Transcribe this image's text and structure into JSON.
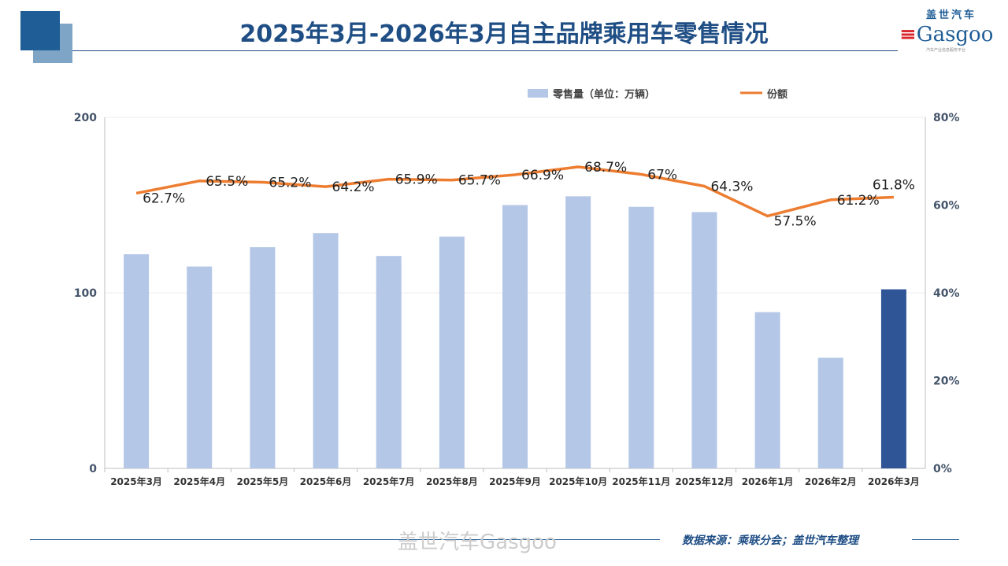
{
  "header": {
    "title": "2025年3月-2026年3月自主品牌乘用车零售情况",
    "logo_cn": "盖世汽车",
    "logo_en": "Gasgoo",
    "logo_sub": "汽车产业信息服务平台"
  },
  "footer": {
    "source": "数据来源：乘联分会；盖世汽车整理",
    "watermark": "盖世汽车Gasgoo"
  },
  "chart_data": {
    "type": "bar+line",
    "categories": [
      "2025年3月",
      "2025年4月",
      "2025年5月",
      "2025年6月",
      "2025年7月",
      "2025年8月",
      "2025年9月",
      "2025年10月",
      "2025年11月",
      "2025年12月",
      "2026年1月",
      "2026年2月",
      "2026年3月"
    ],
    "series": [
      {
        "name": "零售量（单位：万辆）",
        "type": "bar",
        "axis": "left",
        "values": [
          122,
          115,
          126,
          134,
          121,
          132,
          150,
          155,
          149,
          146,
          89,
          63,
          102
        ],
        "color": "#b4c7e7",
        "highlight_color": "#2f5597",
        "highlight_index": 12
      },
      {
        "name": "份额",
        "type": "line",
        "axis": "right",
        "values": [
          62.7,
          65.5,
          65.2,
          64.2,
          65.9,
          65.7,
          66.9,
          68.7,
          67,
          64.3,
          57.5,
          61.2,
          61.8
        ],
        "labels": [
          "62.7%",
          "65.5%",
          "65.2%",
          "64.2%",
          "65.9%",
          "65.7%",
          "66.9%",
          "68.7%",
          "67%",
          "64.3%",
          "57.5%",
          "61.2%",
          "61.8%"
        ],
        "color": "#ed7d31"
      }
    ],
    "yleft": {
      "range": [
        0,
        200
      ],
      "ticks": [
        "0",
        "100",
        "200"
      ]
    },
    "yright": {
      "range": [
        0,
        80
      ],
      "ticks": [
        "0%",
        "20%",
        "40%",
        "60%",
        "80%"
      ]
    },
    "legend": "top",
    "grid": true
  }
}
